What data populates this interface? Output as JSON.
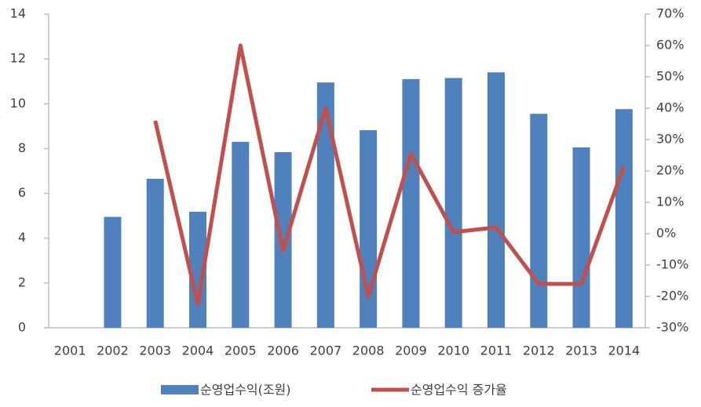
{
  "chart_data": {
    "type": "bar",
    "categories": [
      "2001",
      "2002",
      "2003",
      "2004",
      "2005",
      "2006",
      "2007",
      "2008",
      "2009",
      "2010",
      "2011",
      "2012",
      "2013",
      "2014"
    ],
    "series": [
      {
        "name": "순영업수익(조원)",
        "type": "bar",
        "color": "#4f81bd",
        "values": [
          null,
          4.95,
          6.65,
          5.18,
          8.3,
          7.84,
          10.95,
          8.82,
          11.1,
          11.15,
          11.4,
          9.55,
          8.05,
          9.76
        ]
      },
      {
        "name": "순영업수익 증가율",
        "type": "line",
        "axis": "y2",
        "color": "#c0504d",
        "values": [
          null,
          null,
          36,
          -22.5,
          60,
          -5.5,
          40,
          -20,
          25.5,
          0.5,
          2,
          -16,
          -16,
          21.5
        ]
      }
    ],
    "ylim": [
      0,
      14
    ],
    "yticks": [
      0,
      2,
      4,
      6,
      8,
      10,
      12,
      14
    ],
    "y2lim": [
      -30,
      70
    ],
    "y2ticks": [
      {
        "value": -30,
        "label": "-30%"
      },
      {
        "value": -20,
        "label": "-20%"
      },
      {
        "value": -10,
        "label": "-10%"
      },
      {
        "value": 0,
        "label": "0%"
      },
      {
        "value": 10,
        "label": "10%"
      },
      {
        "value": 20,
        "label": "20%"
      },
      {
        "value": 30,
        "label": "30%"
      },
      {
        "value": 40,
        "label": "40%"
      },
      {
        "value": 50,
        "label": "50%"
      },
      {
        "value": 60,
        "label": "60%"
      },
      {
        "value": 70,
        "label": "70%"
      }
    ],
    "grid": false,
    "legend": "bottom"
  }
}
